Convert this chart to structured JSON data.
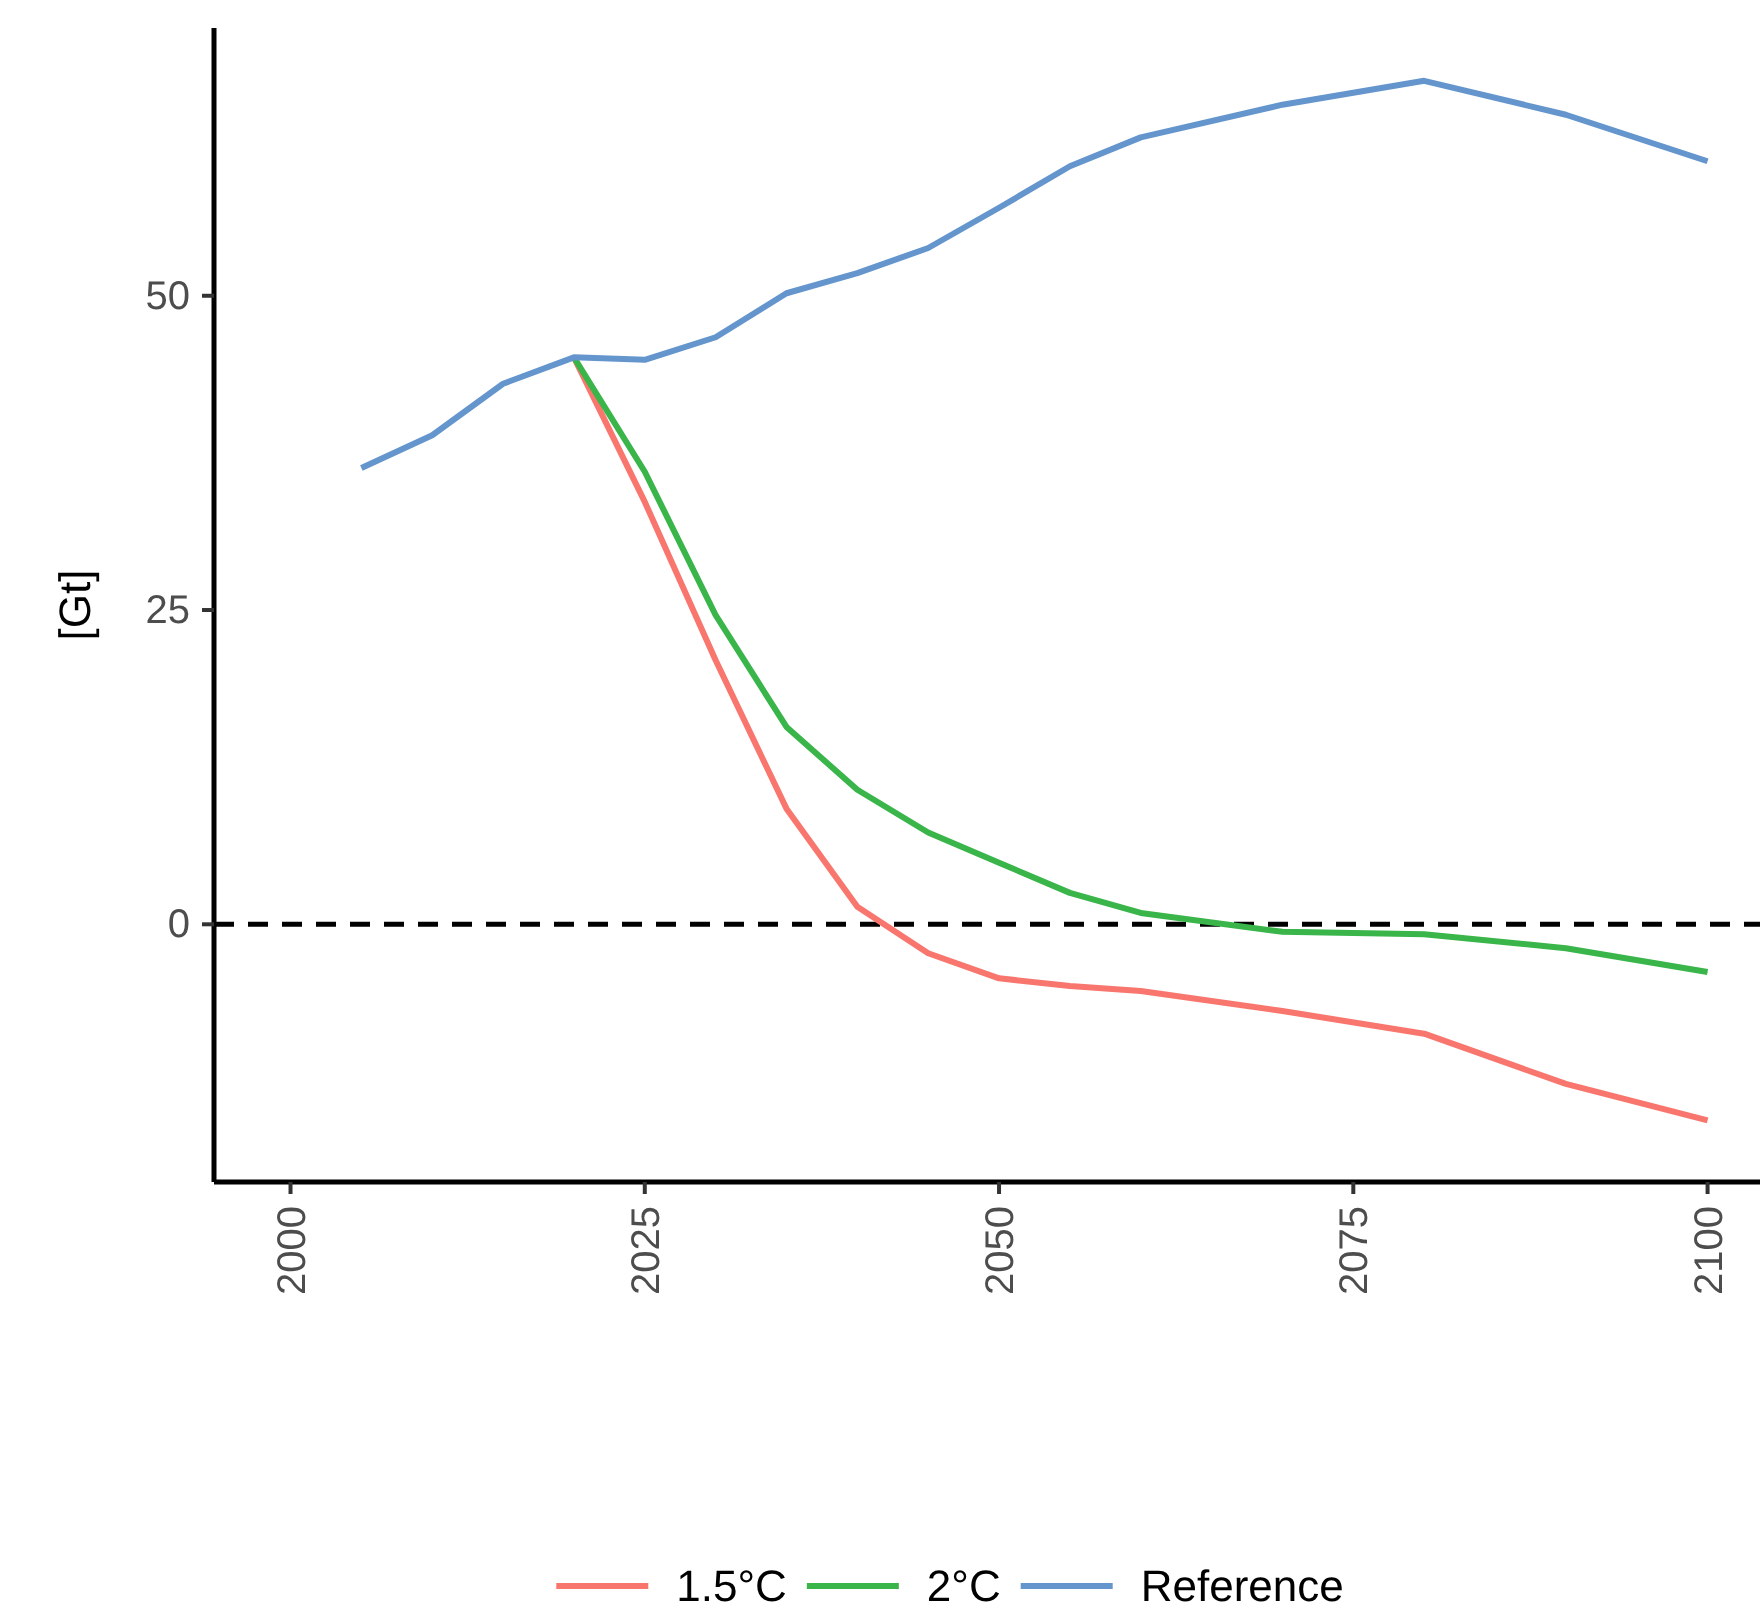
{
  "chart_data": {
    "type": "line",
    "ylabel": "[Gt]",
    "x": [
      2005,
      2010,
      2015,
      2020,
      2025,
      2030,
      2035,
      2040,
      2045,
      2050,
      2055,
      2060,
      2070,
      2080,
      2090,
      2100
    ],
    "series": [
      {
        "name": "1.5°C",
        "color": "#f8766d",
        "values": [
          null,
          null,
          null,
          45.1,
          33.6,
          21.0,
          9.2,
          1.4,
          -2.3,
          -4.3,
          -4.9,
          -5.3,
          -6.9,
          -8.7,
          -12.7,
          -15.6
        ]
      },
      {
        "name": "2°C",
        "color": "#39b54a",
        "values": [
          null,
          null,
          null,
          45.1,
          36.0,
          24.6,
          15.7,
          10.7,
          7.3,
          4.9,
          2.5,
          0.9,
          -0.6,
          -0.8,
          -1.9,
          -3.8
        ]
      },
      {
        "name": "Reference",
        "color": "#6495cd",
        "values": [
          36.3,
          38.9,
          43.0,
          45.1,
          44.9,
          46.7,
          50.2,
          51.8,
          53.8,
          57.0,
          60.3,
          62.6,
          65.2,
          67.1,
          64.4,
          60.7
        ]
      }
    ],
    "xlim": [
      1994.6,
      2103.7
    ],
    "xticks": [
      2000,
      2025,
      2050,
      2075,
      2100
    ],
    "ylim": [
      -20.5,
      71.3
    ],
    "yticks": [
      0,
      25,
      50
    ],
    "ref_lines": [
      {
        "axis": "y",
        "value": 0,
        "color": "#000000",
        "line_style": "dashed"
      }
    ],
    "grid": false,
    "legend": "bottom",
    "line_style": "solid",
    "marker": "none"
  }
}
